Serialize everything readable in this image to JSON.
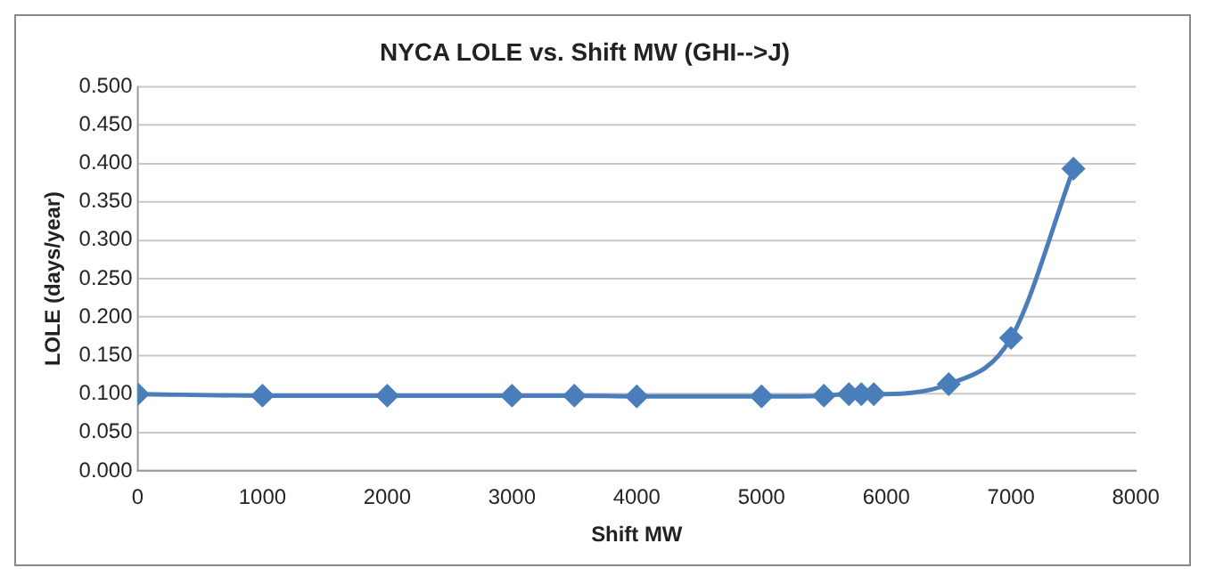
{
  "chart_data": {
    "type": "line",
    "title": "NYCA LOLE vs. Shift MW (GHI-->J)",
    "xlabel": "Shift MW",
    "ylabel": "LOLE (days/year)",
    "x": [
      0,
      1000,
      2000,
      3000,
      3500,
      4000,
      5000,
      5500,
      5700,
      5800,
      5900,
      6500,
      7000,
      7500
    ],
    "series": [
      {
        "color": "#4a7ebb",
        "values": [
          0.1,
          0.098,
          0.098,
          0.098,
          0.098,
          0.097,
          0.097,
          0.098,
          0.1,
          0.1,
          0.1,
          0.113,
          0.173,
          0.393
        ]
      }
    ],
    "xlim": [
      0,
      8000
    ],
    "xticks": [
      0,
      1000,
      2000,
      3000,
      4000,
      5000,
      6000,
      7000,
      8000
    ],
    "ylim": [
      0,
      0.5
    ],
    "yticks": [
      {
        "value": 0,
        "label": "0.000"
      },
      {
        "value": 0.05,
        "label": "0.050"
      },
      {
        "value": 0.1,
        "label": "0.100"
      },
      {
        "value": 0.15,
        "label": "0.150"
      },
      {
        "value": 0.2,
        "label": "0.200"
      },
      {
        "value": 0.25,
        "label": "0.250"
      },
      {
        "value": 0.3,
        "label": "0.300"
      },
      {
        "value": 0.35,
        "label": "0.350"
      },
      {
        "value": 0.4,
        "label": "0.400"
      },
      {
        "value": 0.45,
        "label": "0.450"
      },
      {
        "value": 0.5,
        "label": "0.500"
      }
    ],
    "grid": "y",
    "legend": false,
    "marker": "diamond",
    "line_style": "solid"
  }
}
